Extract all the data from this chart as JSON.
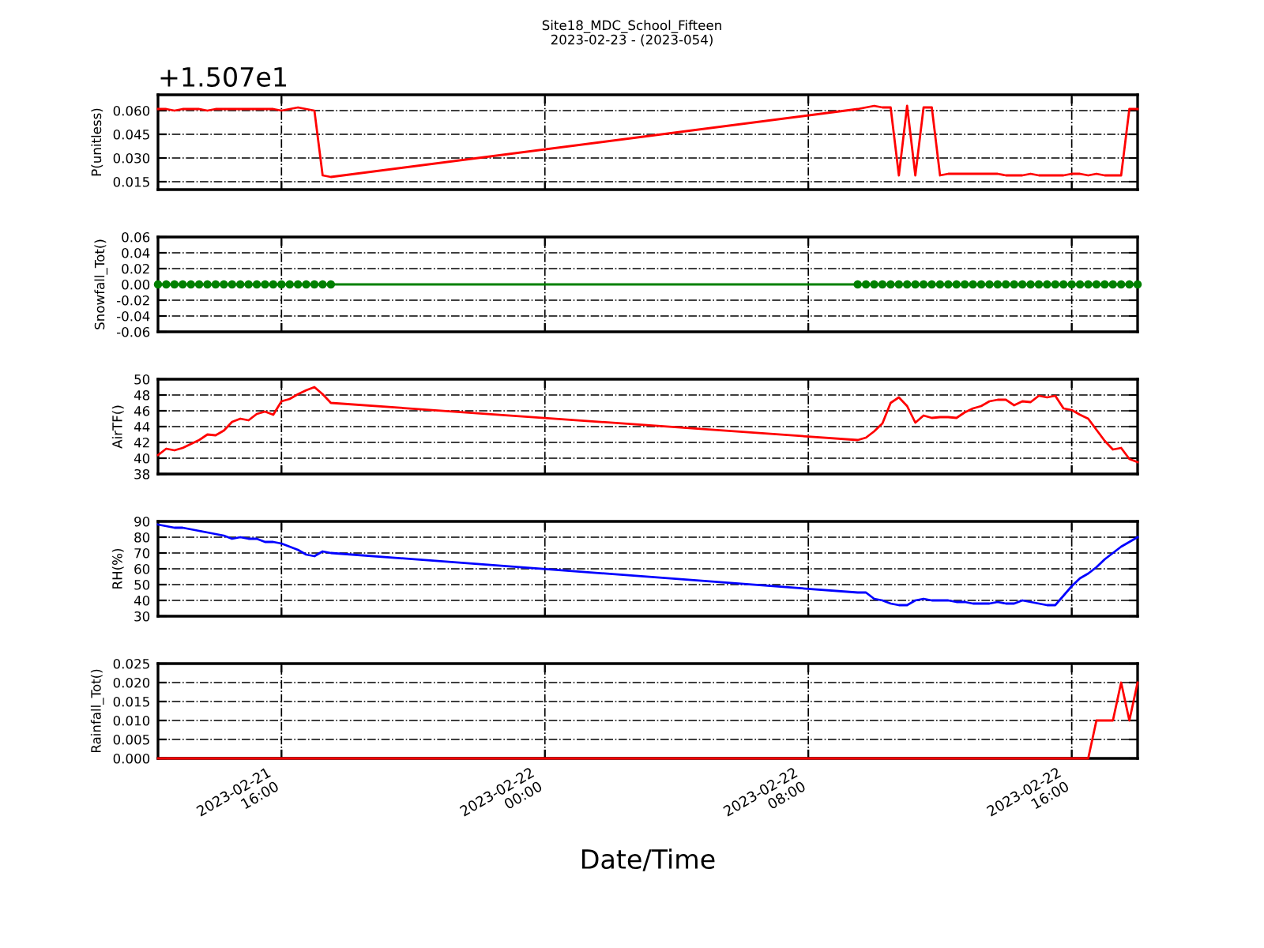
{
  "chart_data": [
    {
      "type": "line",
      "title": "Site18_MDC_School_Fifteen",
      "subtitle": "2023-02-23 - (2023-054)",
      "annotations": [
        "+1.507e1"
      ],
      "ylabel": "P(unitless)",
      "grid": true,
      "tick_labels": "y",
      "x": [
        "2023-02-21T12:15",
        "2023-02-21T12:30",
        "2023-02-21T12:45",
        "2023-02-21T13:00",
        "2023-02-21T13:15",
        "2023-02-21T13:30",
        "2023-02-21T13:45",
        "2023-02-21T14:00",
        "2023-02-21T14:15",
        "2023-02-21T14:30",
        "2023-02-21T14:45",
        "2023-02-21T15:00",
        "2023-02-21T15:15",
        "2023-02-21T15:30",
        "2023-02-21T15:45",
        "2023-02-21T16:00",
        "2023-02-21T16:15",
        "2023-02-21T16:30",
        "2023-02-21T16:45",
        "2023-02-21T17:00",
        "2023-02-21T17:15",
        "2023-02-21T17:30",
        "2023-02-22T09:30",
        "2023-02-22T09:45",
        "2023-02-22T10:00",
        "2023-02-22T10:15",
        "2023-02-22T10:30",
        "2023-02-22T10:45",
        "2023-02-22T11:00",
        "2023-02-22T11:15",
        "2023-02-22T11:30",
        "2023-02-22T11:45",
        "2023-02-22T12:00",
        "2023-02-22T12:15",
        "2023-02-22T12:30",
        "2023-02-22T12:45",
        "2023-02-22T13:00",
        "2023-02-22T13:15",
        "2023-02-22T13:30",
        "2023-02-22T13:45",
        "2023-02-22T14:00",
        "2023-02-22T14:15",
        "2023-02-22T14:30",
        "2023-02-22T14:45",
        "2023-02-22T15:00",
        "2023-02-22T15:15",
        "2023-02-22T15:30",
        "2023-02-22T15:45",
        "2023-02-22T16:00",
        "2023-02-22T16:15",
        "2023-02-22T16:30",
        "2023-02-22T16:45",
        "2023-02-22T17:00",
        "2023-02-22T17:15",
        "2023-02-22T17:30",
        "2023-02-22T17:45",
        "2023-02-22T18:00"
      ],
      "xlim": [
        "2023-02-21T12:15",
        "2023-02-22T18:00"
      ],
      "xticks": [
        {
          "value": "2023-02-21T16:00",
          "label": null
        },
        {
          "value": "2023-02-22T00:00",
          "label": null
        },
        {
          "value": "2023-02-22T08:00",
          "label": null
        },
        {
          "value": "2023-02-22T16:00",
          "label": null
        }
      ],
      "ylim": [
        0.01,
        0.07
      ],
      "yticks": [
        {
          "value": 0.015,
          "label": "0.015"
        },
        {
          "value": 0.03,
          "label": "0.030"
        },
        {
          "value": 0.045,
          "label": "0.045"
        },
        {
          "value": 0.06,
          "label": "0.060"
        }
      ],
      "series": [
        {
          "color": "#ff0000",
          "values": [
            0.061,
            0.061,
            0.06,
            0.061,
            0.061,
            0.061,
            0.06,
            0.061,
            0.061,
            0.061,
            0.061,
            0.061,
            0.061,
            0.061,
            0.061,
            0.06,
            0.061,
            0.062,
            0.061,
            0.06,
            0.019,
            0.018,
            0.061,
            0.062,
            0.063,
            0.062,
            0.062,
            0.019,
            0.063,
            0.019,
            0.062,
            0.062,
            0.019,
            0.02,
            0.02,
            0.02,
            0.02,
            0.02,
            0.02,
            0.02,
            0.019,
            0.019,
            0.019,
            0.02,
            0.019,
            0.019,
            0.019,
            0.019,
            0.02,
            0.02,
            0.019,
            0.02,
            0.019,
            0.019,
            0.019,
            0.061,
            0.061
          ]
        }
      ]
    },
    {
      "type": "line",
      "ylabel": "Snowfall_Tot()",
      "grid": true,
      "tick_labels": "y",
      "marker": "circle",
      "x": [
        "2023-02-21T12:15",
        "2023-02-21T12:30",
        "2023-02-21T12:45",
        "2023-02-21T13:00",
        "2023-02-21T13:15",
        "2023-02-21T13:30",
        "2023-02-21T13:45",
        "2023-02-21T14:00",
        "2023-02-21T14:15",
        "2023-02-21T14:30",
        "2023-02-21T14:45",
        "2023-02-21T15:00",
        "2023-02-21T15:15",
        "2023-02-21T15:30",
        "2023-02-21T15:45",
        "2023-02-21T16:00",
        "2023-02-21T16:15",
        "2023-02-21T16:30",
        "2023-02-21T16:45",
        "2023-02-21T17:00",
        "2023-02-21T17:15",
        "2023-02-21T17:30",
        "2023-02-22T09:30",
        "2023-02-22T09:45",
        "2023-02-22T10:00",
        "2023-02-22T10:15",
        "2023-02-22T10:30",
        "2023-02-22T10:45",
        "2023-02-22T11:00",
        "2023-02-22T11:15",
        "2023-02-22T11:30",
        "2023-02-22T11:45",
        "2023-02-22T12:00",
        "2023-02-22T12:15",
        "2023-02-22T12:30",
        "2023-02-22T12:45",
        "2023-02-22T13:00",
        "2023-02-22T13:15",
        "2023-02-22T13:30",
        "2023-02-22T13:45",
        "2023-02-22T14:00",
        "2023-02-22T14:15",
        "2023-02-22T14:30",
        "2023-02-22T14:45",
        "2023-02-22T15:00",
        "2023-02-22T15:15",
        "2023-02-22T15:30",
        "2023-02-22T15:45",
        "2023-02-22T16:00",
        "2023-02-22T16:15",
        "2023-02-22T16:30",
        "2023-02-22T16:45",
        "2023-02-22T17:00",
        "2023-02-22T17:15",
        "2023-02-22T17:30",
        "2023-02-22T17:45",
        "2023-02-22T18:00"
      ],
      "xlim": [
        "2023-02-21T12:15",
        "2023-02-22T18:00"
      ],
      "xticks": [
        {
          "value": "2023-02-21T16:00",
          "label": null
        },
        {
          "value": "2023-02-22T00:00",
          "label": null
        },
        {
          "value": "2023-02-22T08:00",
          "label": null
        },
        {
          "value": "2023-02-22T16:00",
          "label": null
        }
      ],
      "ylim": [
        -0.06,
        0.06
      ],
      "yticks": [
        {
          "value": -0.06,
          "label": "-0.06"
        },
        {
          "value": -0.04,
          "label": "-0.04"
        },
        {
          "value": -0.02,
          "label": "-0.02"
        },
        {
          "value": 0,
          "label": "0.00"
        },
        {
          "value": 0.02,
          "label": "0.02"
        },
        {
          "value": 0.04,
          "label": "0.04"
        },
        {
          "value": 0.06,
          "label": "0.06"
        }
      ],
      "series": [
        {
          "color": "#008000",
          "values": [
            0,
            0,
            0,
            0,
            0,
            0,
            0,
            0,
            0,
            0,
            0,
            0,
            0,
            0,
            0,
            0,
            0,
            0,
            0,
            0,
            0,
            0,
            0,
            0,
            0,
            0,
            0,
            0,
            0,
            0,
            0,
            0,
            0,
            0,
            0,
            0,
            0,
            0,
            0,
            0,
            0,
            0,
            0,
            0,
            0,
            0,
            0,
            0,
            0,
            0,
            0,
            0,
            0,
            0,
            0,
            0,
            0
          ]
        }
      ]
    },
    {
      "type": "line",
      "ylabel": "AirTF()",
      "grid": true,
      "tick_labels": "y",
      "x": [
        "2023-02-21T12:15",
        "2023-02-21T12:30",
        "2023-02-21T12:45",
        "2023-02-21T13:00",
        "2023-02-21T13:15",
        "2023-02-21T13:30",
        "2023-02-21T13:45",
        "2023-02-21T14:00",
        "2023-02-21T14:15",
        "2023-02-21T14:30",
        "2023-02-21T14:45",
        "2023-02-21T15:00",
        "2023-02-21T15:15",
        "2023-02-21T15:30",
        "2023-02-21T15:45",
        "2023-02-21T16:00",
        "2023-02-21T16:15",
        "2023-02-21T16:30",
        "2023-02-21T16:45",
        "2023-02-21T17:00",
        "2023-02-21T17:15",
        "2023-02-21T17:30",
        "2023-02-22T09:30",
        "2023-02-22T09:45",
        "2023-02-22T10:00",
        "2023-02-22T10:15",
        "2023-02-22T10:30",
        "2023-02-22T10:45",
        "2023-02-22T11:00",
        "2023-02-22T11:15",
        "2023-02-22T11:30",
        "2023-02-22T11:45",
        "2023-02-22T12:00",
        "2023-02-22T12:15",
        "2023-02-22T12:30",
        "2023-02-22T12:45",
        "2023-02-22T13:00",
        "2023-02-22T13:15",
        "2023-02-22T13:30",
        "2023-02-22T13:45",
        "2023-02-22T14:00",
        "2023-02-22T14:15",
        "2023-02-22T14:30",
        "2023-02-22T14:45",
        "2023-02-22T15:00",
        "2023-02-22T15:15",
        "2023-02-22T15:30",
        "2023-02-22T15:45",
        "2023-02-22T16:00",
        "2023-02-22T16:15",
        "2023-02-22T16:30",
        "2023-02-22T16:45",
        "2023-02-22T17:00",
        "2023-02-22T17:15",
        "2023-02-22T17:30",
        "2023-02-22T17:45",
        "2023-02-22T18:00"
      ],
      "xlim": [
        "2023-02-21T12:15",
        "2023-02-22T18:00"
      ],
      "xticks": [
        {
          "value": "2023-02-21T16:00",
          "label": null
        },
        {
          "value": "2023-02-22T00:00",
          "label": null
        },
        {
          "value": "2023-02-22T08:00",
          "label": null
        },
        {
          "value": "2023-02-22T16:00",
          "label": null
        }
      ],
      "ylim": [
        38,
        50
      ],
      "yticks": [
        38,
        40,
        42,
        44,
        46,
        48,
        50
      ],
      "series": [
        {
          "color": "#ff0000",
          "values": [
            40.4,
            41.2,
            41.0,
            41.3,
            41.8,
            42.3,
            43.0,
            42.9,
            43.5,
            44.6,
            45.0,
            44.8,
            45.6,
            45.9,
            45.5,
            47.2,
            47.5,
            48.1,
            48.6,
            49.0,
            48.1,
            47.0,
            42.3,
            42.6,
            43.4,
            44.4,
            47.0,
            47.7,
            46.6,
            44.5,
            45.4,
            45.1,
            45.2,
            45.2,
            45.1,
            45.8,
            46.3,
            46.6,
            47.2,
            47.4,
            47.4,
            46.7,
            47.2,
            47.1,
            47.9,
            47.7,
            47.9,
            46.3,
            46.1,
            45.5,
            45.0,
            43.6,
            42.2,
            41.1,
            41.3,
            39.9,
            39.5
          ]
        }
      ]
    },
    {
      "type": "line",
      "ylabel": "RH(%)",
      "grid": true,
      "tick_labels": "y",
      "x": [
        "2023-02-21T12:15",
        "2023-02-21T12:30",
        "2023-02-21T12:45",
        "2023-02-21T13:00",
        "2023-02-21T13:15",
        "2023-02-21T13:30",
        "2023-02-21T13:45",
        "2023-02-21T14:00",
        "2023-02-21T14:15",
        "2023-02-21T14:30",
        "2023-02-21T14:45",
        "2023-02-21T15:00",
        "2023-02-21T15:15",
        "2023-02-21T15:30",
        "2023-02-21T15:45",
        "2023-02-21T16:00",
        "2023-02-21T16:15",
        "2023-02-21T16:30",
        "2023-02-21T16:45",
        "2023-02-21T17:00",
        "2023-02-21T17:15",
        "2023-02-21T17:30",
        "2023-02-22T09:30",
        "2023-02-22T09:45",
        "2023-02-22T10:00",
        "2023-02-22T10:15",
        "2023-02-22T10:30",
        "2023-02-22T10:45",
        "2023-02-22T11:00",
        "2023-02-22T11:15",
        "2023-02-22T11:30",
        "2023-02-22T11:45",
        "2023-02-22T12:00",
        "2023-02-22T12:15",
        "2023-02-22T12:30",
        "2023-02-22T12:45",
        "2023-02-22T13:00",
        "2023-02-22T13:15",
        "2023-02-22T13:30",
        "2023-02-22T13:45",
        "2023-02-22T14:00",
        "2023-02-22T14:15",
        "2023-02-22T14:30",
        "2023-02-22T14:45",
        "2023-02-22T15:00",
        "2023-02-22T15:15",
        "2023-02-22T15:30",
        "2023-02-22T15:45",
        "2023-02-22T16:00",
        "2023-02-22T16:15",
        "2023-02-22T16:30",
        "2023-02-22T16:45",
        "2023-02-22T17:00",
        "2023-02-22T17:15",
        "2023-02-22T17:30",
        "2023-02-22T17:45",
        "2023-02-22T18:00"
      ],
      "xlim": [
        "2023-02-21T12:15",
        "2023-02-22T18:00"
      ],
      "xticks": [
        {
          "value": "2023-02-21T16:00",
          "label": null
        },
        {
          "value": "2023-02-22T00:00",
          "label": null
        },
        {
          "value": "2023-02-22T08:00",
          "label": null
        },
        {
          "value": "2023-02-22T16:00",
          "label": null
        }
      ],
      "ylim": [
        30,
        90
      ],
      "yticks": [
        30,
        40,
        50,
        60,
        70,
        80,
        90
      ],
      "series": [
        {
          "color": "#0000ff",
          "values": [
            88,
            87,
            86,
            86,
            85,
            84,
            83,
            82,
            81,
            79,
            80,
            79,
            79,
            77,
            77,
            76,
            74,
            72,
            69,
            68,
            71,
            70,
            45,
            45,
            41,
            40,
            38,
            37,
            37,
            40,
            41,
            40,
            40,
            40,
            39,
            39,
            38,
            38,
            38,
            39,
            38,
            38,
            40,
            39,
            38,
            37,
            37,
            43,
            49,
            54,
            57,
            61,
            66,
            70,
            74,
            77,
            80
          ]
        }
      ]
    },
    {
      "type": "line",
      "ylabel": "Rainfall_Tot()",
      "xlabel": "Date/Time",
      "grid": true,
      "x": [
        "2023-02-21T12:15",
        "2023-02-21T12:30",
        "2023-02-21T12:45",
        "2023-02-21T13:00",
        "2023-02-21T13:15",
        "2023-02-21T13:30",
        "2023-02-21T13:45",
        "2023-02-21T14:00",
        "2023-02-21T14:15",
        "2023-02-21T14:30",
        "2023-02-21T14:45",
        "2023-02-21T15:00",
        "2023-02-21T15:15",
        "2023-02-21T15:30",
        "2023-02-21T15:45",
        "2023-02-21T16:00",
        "2023-02-21T16:15",
        "2023-02-21T16:30",
        "2023-02-21T16:45",
        "2023-02-21T17:00",
        "2023-02-21T17:15",
        "2023-02-21T17:30",
        "2023-02-22T09:30",
        "2023-02-22T09:45",
        "2023-02-22T10:00",
        "2023-02-22T10:15",
        "2023-02-22T10:30",
        "2023-02-22T10:45",
        "2023-02-22T11:00",
        "2023-02-22T11:15",
        "2023-02-22T11:30",
        "2023-02-22T11:45",
        "2023-02-22T12:00",
        "2023-02-22T12:15",
        "2023-02-22T12:30",
        "2023-02-22T12:45",
        "2023-02-22T13:00",
        "2023-02-22T13:15",
        "2023-02-22T13:30",
        "2023-02-22T13:45",
        "2023-02-22T14:00",
        "2023-02-22T14:15",
        "2023-02-22T14:30",
        "2023-02-22T14:45",
        "2023-02-22T15:00",
        "2023-02-22T15:15",
        "2023-02-22T15:30",
        "2023-02-22T15:45",
        "2023-02-22T16:00",
        "2023-02-22T16:15",
        "2023-02-22T16:30",
        "2023-02-22T16:45",
        "2023-02-22T17:00",
        "2023-02-22T17:15",
        "2023-02-22T17:30",
        "2023-02-22T17:45",
        "2023-02-22T18:00"
      ],
      "xlim": [
        "2023-02-21T12:15",
        "2023-02-22T18:00"
      ],
      "xticks": [
        {
          "value": "2023-02-21T16:00",
          "label": "2023-02-21\n16:00"
        },
        {
          "value": "2023-02-22T00:00",
          "label": "2023-02-22\n00:00"
        },
        {
          "value": "2023-02-22T08:00",
          "label": "2023-02-22\n08:00"
        },
        {
          "value": "2023-02-22T16:00",
          "label": "2023-02-22\n16:00"
        }
      ],
      "ylim": [
        0,
        0.025
      ],
      "yticks": [
        {
          "value": 0,
          "label": "0.000"
        },
        {
          "value": 0.005,
          "label": "0.005"
        },
        {
          "value": 0.01,
          "label": "0.010"
        },
        {
          "value": 0.015,
          "label": "0.015"
        },
        {
          "value": 0.02,
          "label": "0.020"
        },
        {
          "value": 0.025,
          "label": "0.025"
        }
      ],
      "series": [
        {
          "color": "#ff0000",
          "values": [
            0,
            0,
            0,
            0,
            0,
            0,
            0,
            0,
            0,
            0,
            0,
            0,
            0,
            0,
            0,
            0,
            0,
            0,
            0,
            0,
            0,
            0,
            0,
            0,
            0,
            0,
            0,
            0,
            0,
            0,
            0,
            0,
            0,
            0,
            0,
            0,
            0,
            0,
            0,
            0,
            0,
            0,
            0,
            0,
            0,
            0,
            0,
            0,
            0,
            0,
            0,
            0.01,
            0.01,
            0.01,
            0.02,
            0.01,
            0.02
          ]
        }
      ]
    }
  ]
}
